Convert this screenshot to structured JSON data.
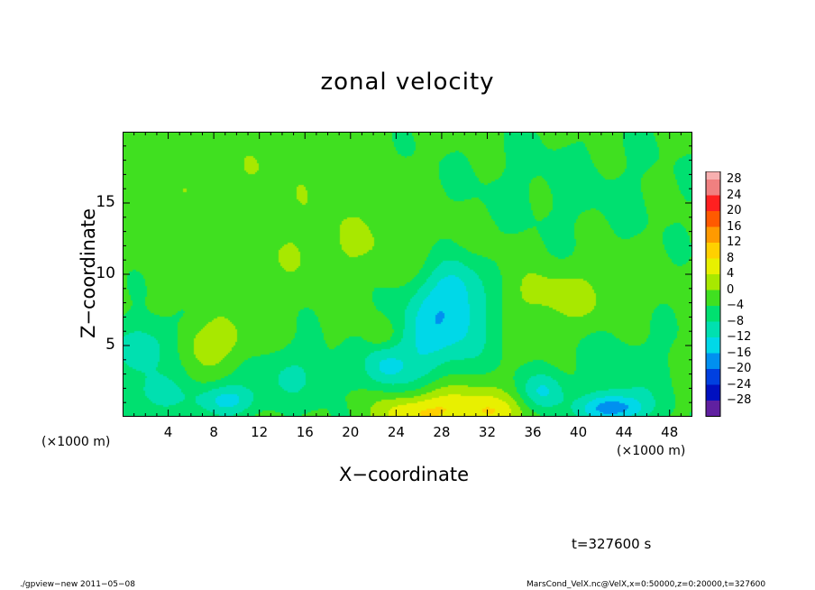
{
  "chart_data": {
    "type": "heatmap",
    "title": "zonal velocity",
    "xlabel": "X−coordinate",
    "ylabel": "Z−coordinate",
    "x_unit": "(×1000 m)",
    "x_unit_right": "(×1000 m)",
    "xlim": [
      0,
      50
    ],
    "ylim": [
      0,
      20
    ],
    "xticks": [
      4,
      8,
      12,
      16,
      20,
      24,
      28,
      32,
      36,
      40,
      44,
      48
    ],
    "yticks": [
      5,
      10,
      15
    ],
    "colorbar": {
      "levels": [
        28,
        24,
        20,
        16,
        12,
        8,
        4,
        0,
        -4,
        -8,
        -12,
        -16,
        -20,
        -24,
        -28
      ],
      "labels": [
        "28",
        "24",
        "20",
        "16",
        "12",
        "8",
        "4",
        "0",
        "−4",
        "−8",
        "−12",
        "−16",
        "−20",
        "−24",
        "−28"
      ],
      "colors": [
        "#f08080",
        "#ff2020",
        "#ff5a00",
        "#ff9a00",
        "#ffd000",
        "#e8f000",
        "#a8e800",
        "#40e020",
        "#00e070",
        "#00e0b0",
        "#00d8e8",
        "#0090f0",
        "#0040e0",
        "#0010c0",
        "#6020a0"
      ],
      "top_color": "#f8b0b0"
    },
    "features": [
      {
        "x": 29,
        "z": 0.6,
        "value": 10,
        "sx": 3,
        "sz": 1.2
      },
      {
        "x": 25,
        "z": 0.3,
        "value": 7,
        "sx": 2,
        "sz": 0.8
      },
      {
        "x": 33,
        "z": 0.3,
        "value": 5,
        "sx": 2,
        "sz": 0.8
      },
      {
        "x": 28.5,
        "z": 7,
        "value": -11,
        "sx": 2.8,
        "sz": 2.2
      },
      {
        "x": 29,
        "z": 9.5,
        "value": -6,
        "sx": 1.6,
        "sz": 1.5
      },
      {
        "x": 26,
        "z": 4,
        "value": -5,
        "sx": 2,
        "sz": 1.8
      },
      {
        "x": 23,
        "z": 3.5,
        "value": -8,
        "sx": 1.3,
        "sz": 1.1
      },
      {
        "x": 9,
        "z": 1.2,
        "value": -10,
        "sx": 2,
        "sz": 0.8
      },
      {
        "x": 2,
        "z": 5,
        "value": -8,
        "sx": 2,
        "sz": 1.3
      },
      {
        "x": 2.5,
        "z": 1.5,
        "value": -6,
        "sx": 2,
        "sz": 1.2
      },
      {
        "x": 43,
        "z": 0.6,
        "value": -15,
        "sx": 2,
        "sz": 0.7
      },
      {
        "x": 37,
        "z": 1.8,
        "value": -9,
        "sx": 1.4,
        "sz": 1
      },
      {
        "x": 8,
        "z": 5.3,
        "value": 6,
        "sx": 2.4,
        "sz": 1.2
      },
      {
        "x": 22.5,
        "z": 5.8,
        "value": 4,
        "sx": 0.9,
        "sz": 0.6
      },
      {
        "x": 38,
        "z": 8.5,
        "value": 5,
        "sx": 3.5,
        "sz": 1.3
      },
      {
        "x": 44,
        "z": 3,
        "value": -4,
        "sx": 3,
        "sz": 2
      },
      {
        "x": 15,
        "z": 3,
        "value": -5,
        "sx": 3,
        "sz": 1.5
      },
      {
        "x": 20,
        "z": 12,
        "value": 3,
        "sx": 8,
        "sz": 2
      },
      {
        "x": 38,
        "z": 16,
        "value": -2,
        "sx": 8,
        "sz": 3
      },
      {
        "x": 10,
        "z": 17,
        "value": 2,
        "sx": 8,
        "sz": 2
      }
    ]
  },
  "annotations": {
    "time": "t=327600 s",
    "footer_left": "./gpview−new   2011−05−08",
    "footer_right": "MarsCond_VelX.nc@VelX,x=0:50000,z=0:20000,t=327600"
  }
}
